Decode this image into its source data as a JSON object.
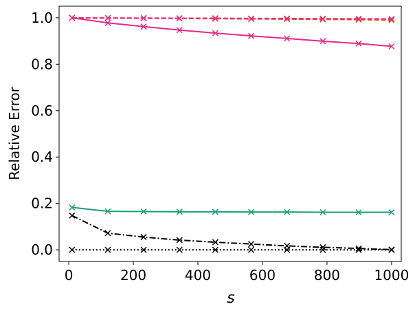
{
  "chart_data": {
    "type": "line",
    "xlabel": "s",
    "ylabel": "Relative Error",
    "xlim": [
      -30,
      1030
    ],
    "ylim": [
      -0.05,
      1.05
    ],
    "xticks": [
      0,
      200,
      400,
      600,
      800,
      1000
    ],
    "yticks": [
      0.0,
      0.2,
      0.4,
      0.6,
      0.8,
      1.0
    ],
    "xtick_labels": [
      "0",
      "200",
      "400",
      "600",
      "800",
      "1000"
    ],
    "ytick_labels": [
      "0.0",
      "0.2",
      "0.4",
      "0.6",
      "0.8",
      "1.0"
    ],
    "x": [
      10,
      121,
      232,
      343,
      454,
      565,
      676,
      787,
      898,
      1000
    ],
    "grid": false,
    "legend": "none",
    "series": [
      {
        "color": "#e7298a",
        "dash": "solid",
        "marker": "x",
        "values": [
          1.0,
          0.978,
          0.962,
          0.947,
          0.934,
          0.922,
          0.911,
          0.899,
          0.889,
          0.877
        ]
      },
      {
        "color": "#d95f02",
        "dash": "dashed",
        "marker": "x",
        "values": [
          1.0,
          0.999,
          0.998,
          0.997,
          0.996,
          0.995,
          0.994,
          0.993,
          0.992,
          0.99
        ]
      },
      {
        "color": "#e7298a",
        "dash": "dashed",
        "marker": "x",
        "values": [
          1.0,
          0.999,
          0.999,
          0.998,
          0.998,
          0.997,
          0.997,
          0.996,
          0.996,
          0.995
        ]
      },
      {
        "color": "#1b9e77",
        "dash": "solid",
        "marker": "x",
        "values": [
          0.183,
          0.166,
          0.165,
          0.164,
          0.164,
          0.163,
          0.163,
          0.162,
          0.162,
          0.162
        ]
      },
      {
        "color": "#000000",
        "dash": "dashdot",
        "marker": "x",
        "values": [
          0.148,
          0.072,
          0.055,
          0.042,
          0.033,
          0.025,
          0.017,
          0.011,
          0.006,
          0.001
        ]
      },
      {
        "color": "#000000",
        "dash": "dotted",
        "marker": "x",
        "values": [
          0.0,
          0.0,
          0.0,
          0.0,
          0.0,
          0.0,
          0.0,
          0.0,
          0.0,
          0.0
        ]
      }
    ]
  }
}
